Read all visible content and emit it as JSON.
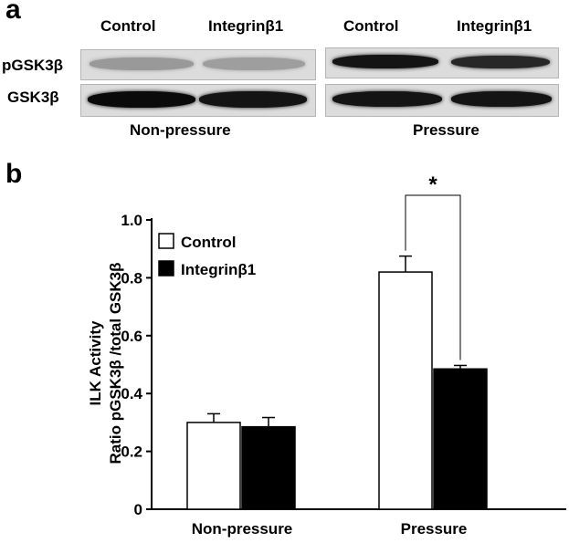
{
  "panel_a": {
    "letter": "a",
    "lanes": [
      "Control",
      "Integrinβ1",
      "Control",
      "Integrinβ1"
    ],
    "rows": [
      "pGSK3β",
      "GSK3β"
    ],
    "groups": [
      "Non-pressure",
      "Pressure"
    ],
    "band_intensity": {
      "pGSK3β": [
        0.25,
        0.22,
        0.95,
        0.85
      ],
      "GSK3β": [
        1.0,
        0.95,
        0.95,
        0.95
      ]
    }
  },
  "panel_b": {
    "letter": "b"
  },
  "chart_data": {
    "type": "bar",
    "categories": [
      "Non-pressure",
      "Pressure"
    ],
    "series": [
      {
        "name": "Control",
        "values": [
          0.3,
          0.82
        ],
        "errors": [
          0.03,
          0.055
        ],
        "color": "#ffffff"
      },
      {
        "name": "Integrinβ1",
        "values": [
          0.285,
          0.485
        ],
        "errors": [
          0.032,
          0.012
        ],
        "color": "#000000"
      }
    ],
    "ylabel_lines": [
      "ILK Activity",
      "Ratio pGSK3β /total GSK3β"
    ],
    "ylim": [
      0,
      1.0
    ],
    "yticks": [
      "0",
      "0.2",
      "0.4",
      "0.6",
      "0.8",
      "1.0"
    ],
    "ytick_values": [
      0,
      0.2,
      0.4,
      0.6,
      0.8,
      1.0
    ],
    "significance": {
      "label": "*",
      "category": "Pressure"
    },
    "legend_position": "top-left",
    "grid": false
  }
}
